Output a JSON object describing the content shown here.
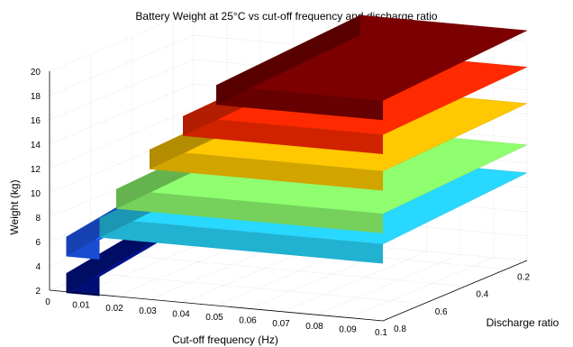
{
  "chart_data": {
    "type": "surface",
    "title": "Battery Weight at 25°C vs cut-off frequency and discharge ratio",
    "xlabel": "Cut-off frequency (Hz)",
    "ylabel": "Discharge ratio",
    "zlabel": "Weight (kg)",
    "xlim": [
      0,
      0.1
    ],
    "ylim": [
      0.1,
      0.8
    ],
    "zlim": [
      2,
      20
    ],
    "x_ticks": [
      "0",
      "0.01",
      "0.02",
      "0.03",
      "0.04",
      "0.05",
      "0.06",
      "0.07",
      "0.08",
      "0.09",
      "0.1"
    ],
    "y_ticks": [
      "0.2",
      "0.4",
      "0.6",
      "0.8"
    ],
    "z_ticks": [
      "2",
      "4",
      "6",
      "8",
      "10",
      "12",
      "14",
      "16",
      "18",
      "20"
    ],
    "grid": true,
    "colormap": "jet",
    "terraces": [
      {
        "x_from": 0.005,
        "x_to": 0.015,
        "weight_at_0_8": 3.5,
        "weight_at_0_1": 5.5,
        "color": "#00128f"
      },
      {
        "x_from": 0.005,
        "x_to": 0.015,
        "weight_at_0_8": 6.5,
        "weight_at_0_1": 8.5,
        "color": "#1e5dff"
      },
      {
        "x_from": 0.015,
        "x_to": 0.1,
        "weight_at_0_8": 8.3,
        "weight_at_0_1": 9.2,
        "color": "#28d8ff"
      },
      {
        "x_from": 0.02,
        "x_to": 0.1,
        "weight_at_0_8": 10.8,
        "weight_at_0_1": 11.5,
        "color": "#8fff6f"
      },
      {
        "x_from": 0.03,
        "x_to": 0.1,
        "weight_at_0_8": 14.3,
        "weight_at_0_1": 14.9,
        "color": "#ffc800"
      },
      {
        "x_from": 0.04,
        "x_to": 0.1,
        "weight_at_0_8": 17.3,
        "weight_at_0_1": 17.9,
        "color": "#ff2a00"
      },
      {
        "x_from": 0.05,
        "x_to": 0.1,
        "weight_at_0_8": 20.1,
        "weight_at_0_1": 20.9,
        "color": "#7d0000"
      }
    ]
  }
}
